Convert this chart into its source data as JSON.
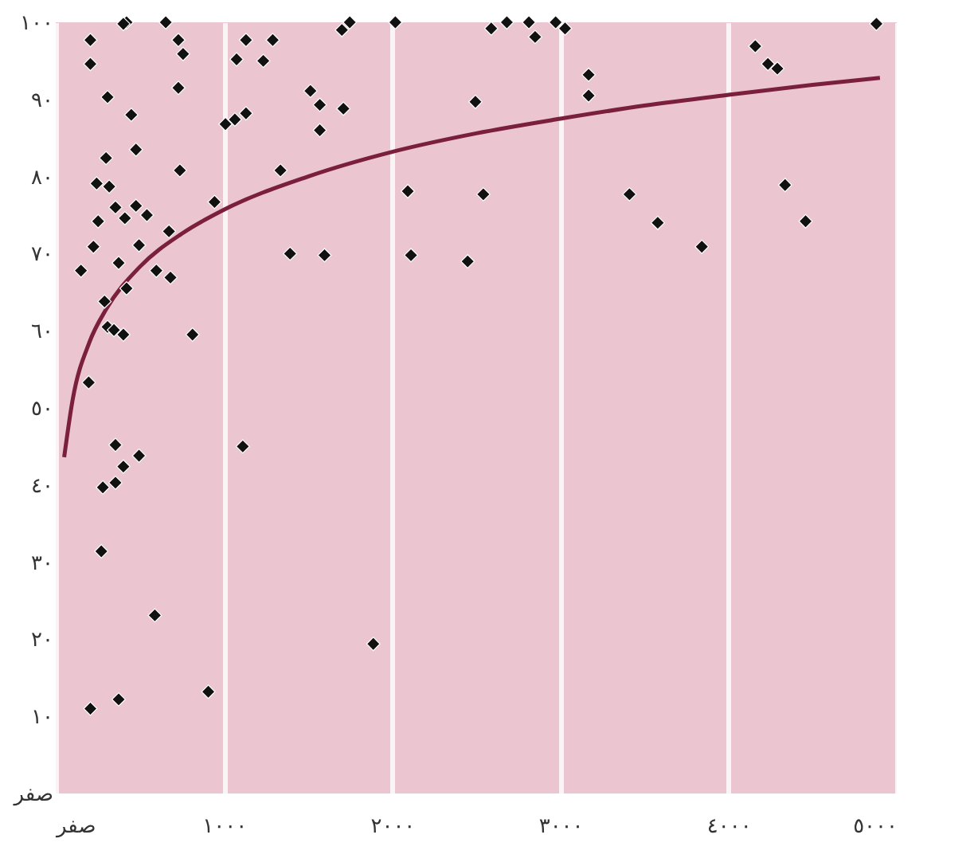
{
  "chart_data": {
    "type": "scatter",
    "xlim": [
      0,
      5000
    ],
    "ylim": [
      0,
      100
    ],
    "xticks": [
      {
        "value": 0,
        "label": "صفر"
      },
      {
        "value": 1000,
        "label": "١٠٠٠"
      },
      {
        "value": 2000,
        "label": "٢٠٠٠"
      },
      {
        "value": 3000,
        "label": "٣٠٠٠"
      },
      {
        "value": 4000,
        "label": "٤٠٠٠"
      },
      {
        "value": 5000,
        "label": "٥٠٠٠"
      }
    ],
    "yticks": [
      {
        "value": 0,
        "label": "صفر"
      },
      {
        "value": 10,
        "label": "١٠"
      },
      {
        "value": 20,
        "label": "٢٠"
      },
      {
        "value": 30,
        "label": "٣٠"
      },
      {
        "value": 40,
        "label": "٤٠"
      },
      {
        "value": 50,
        "label": "٥٠"
      },
      {
        "value": 60,
        "label": "٦٠"
      },
      {
        "value": 70,
        "label": "٧٠"
      },
      {
        "value": 80,
        "label": "٨٠"
      },
      {
        "value": 90,
        "label": "٩٠"
      },
      {
        "value": 100,
        "label": "١٠٠"
      }
    ],
    "grid": "x",
    "marker": "diamond",
    "series": [
      {
        "type": "scatter",
        "color": "#111111",
        "x": [
          206,
          206,
          308,
          449,
          421,
          402,
          654,
          729,
          757,
          729,
          477,
          299,
          243,
          318,
          738,
          252,
          355,
          411,
          477,
          542,
          673,
          224,
          150,
          374,
          495,
          598,
          682,
          421,
          290,
          308,
          346,
          402,
          813,
          196,
          1009,
          1065,
          1131,
          1075,
          1131,
          1234,
          1290,
          1514,
          1570,
          1570,
          1710,
          1701,
          1748,
          1336,
          1393,
          1598,
          944,
          355,
          402,
          495,
          355,
          280,
          271,
          589,
          907,
          374,
          206,
          1112,
          1888,
          2019,
          2589,
          2682,
          2813,
          2850,
          2972,
          3028,
          3168,
          3168,
          2495,
          4159,
          4234,
          4290,
          4879,
          2093,
          2542,
          3411,
          3579,
          3841,
          4336,
          4458,
          2112,
          2449
        ],
        "values": [
          97.7,
          94.6,
          90.3,
          88,
          100,
          99.8,
          100,
          97.7,
          95.9,
          91.5,
          83.5,
          82.4,
          79.1,
          78.7,
          80.8,
          74.2,
          76,
          74.6,
          76.2,
          75,
          72.9,
          70.9,
          67.8,
          68.8,
          71.1,
          67.8,
          66.9,
          65.5,
          63.8,
          60.5,
          60.1,
          59.5,
          59.5,
          53.3,
          86.8,
          87.4,
          88.2,
          95.2,
          97.7,
          95,
          97.7,
          91.1,
          89.3,
          86,
          88.8,
          99,
          100,
          80.8,
          70,
          69.8,
          76.7,
          45.2,
          42.4,
          43.8,
          40.3,
          39.7,
          31.4,
          23.1,
          13.2,
          12.2,
          11,
          45,
          19.4,
          100,
          99.2,
          100,
          100,
          98.1,
          100,
          99.2,
          93.2,
          90.5,
          89.7,
          96.9,
          94.6,
          94,
          99.8,
          78.1,
          77.7,
          77.7,
          74,
          70.9,
          78.9,
          74.2,
          69.8,
          69
        ]
      },
      {
        "type": "line",
        "color": "#7a1f3d",
        "marker": "none",
        "line_style": "solid",
        "x": [
          50,
          100,
          200,
          300,
          500,
          750,
          1000,
          1500,
          2000,
          2500,
          3000,
          3500,
          4000,
          4500,
          4900
        ],
        "values": [
          43.6,
          51,
          58.5,
          62.8,
          68.3,
          72.6,
          75.7,
          80,
          83.2,
          85.6,
          87.5,
          89.2,
          90.6,
          91.9,
          92.8
        ]
      }
    ]
  }
}
